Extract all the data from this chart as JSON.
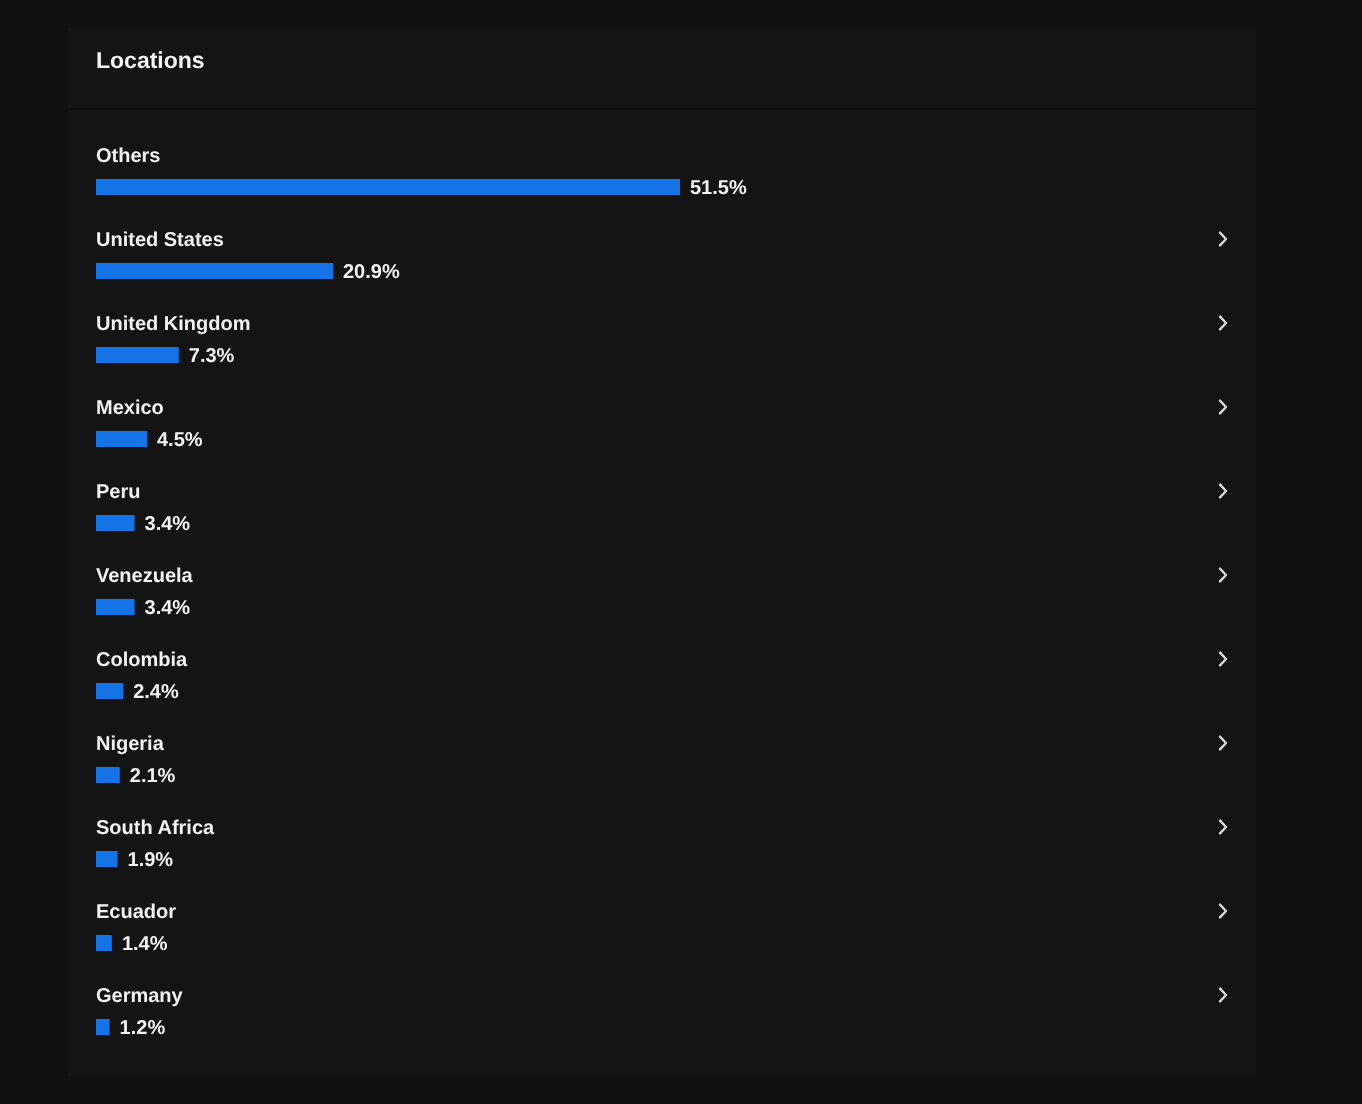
{
  "chart_data": {
    "type": "bar",
    "title": "Locations",
    "orientation": "horizontal",
    "categories": [
      "Others",
      "United States",
      "United Kingdom",
      "Mexico",
      "Peru",
      "Venezuela",
      "Colombia",
      "Nigeria",
      "South Africa",
      "Ecuador",
      "Germany"
    ],
    "values": [
      51.5,
      20.9,
      7.3,
      4.5,
      3.4,
      3.4,
      2.4,
      2.1,
      1.9,
      1.4,
      1.2
    ],
    "value_labels": [
      "51.5%",
      "20.9%",
      "7.3%",
      "4.5%",
      "3.4%",
      "3.4%",
      "2.4%",
      "2.1%",
      "1.9%",
      "1.4%",
      "1.2%"
    ],
    "color": "#1473e6"
  }
}
